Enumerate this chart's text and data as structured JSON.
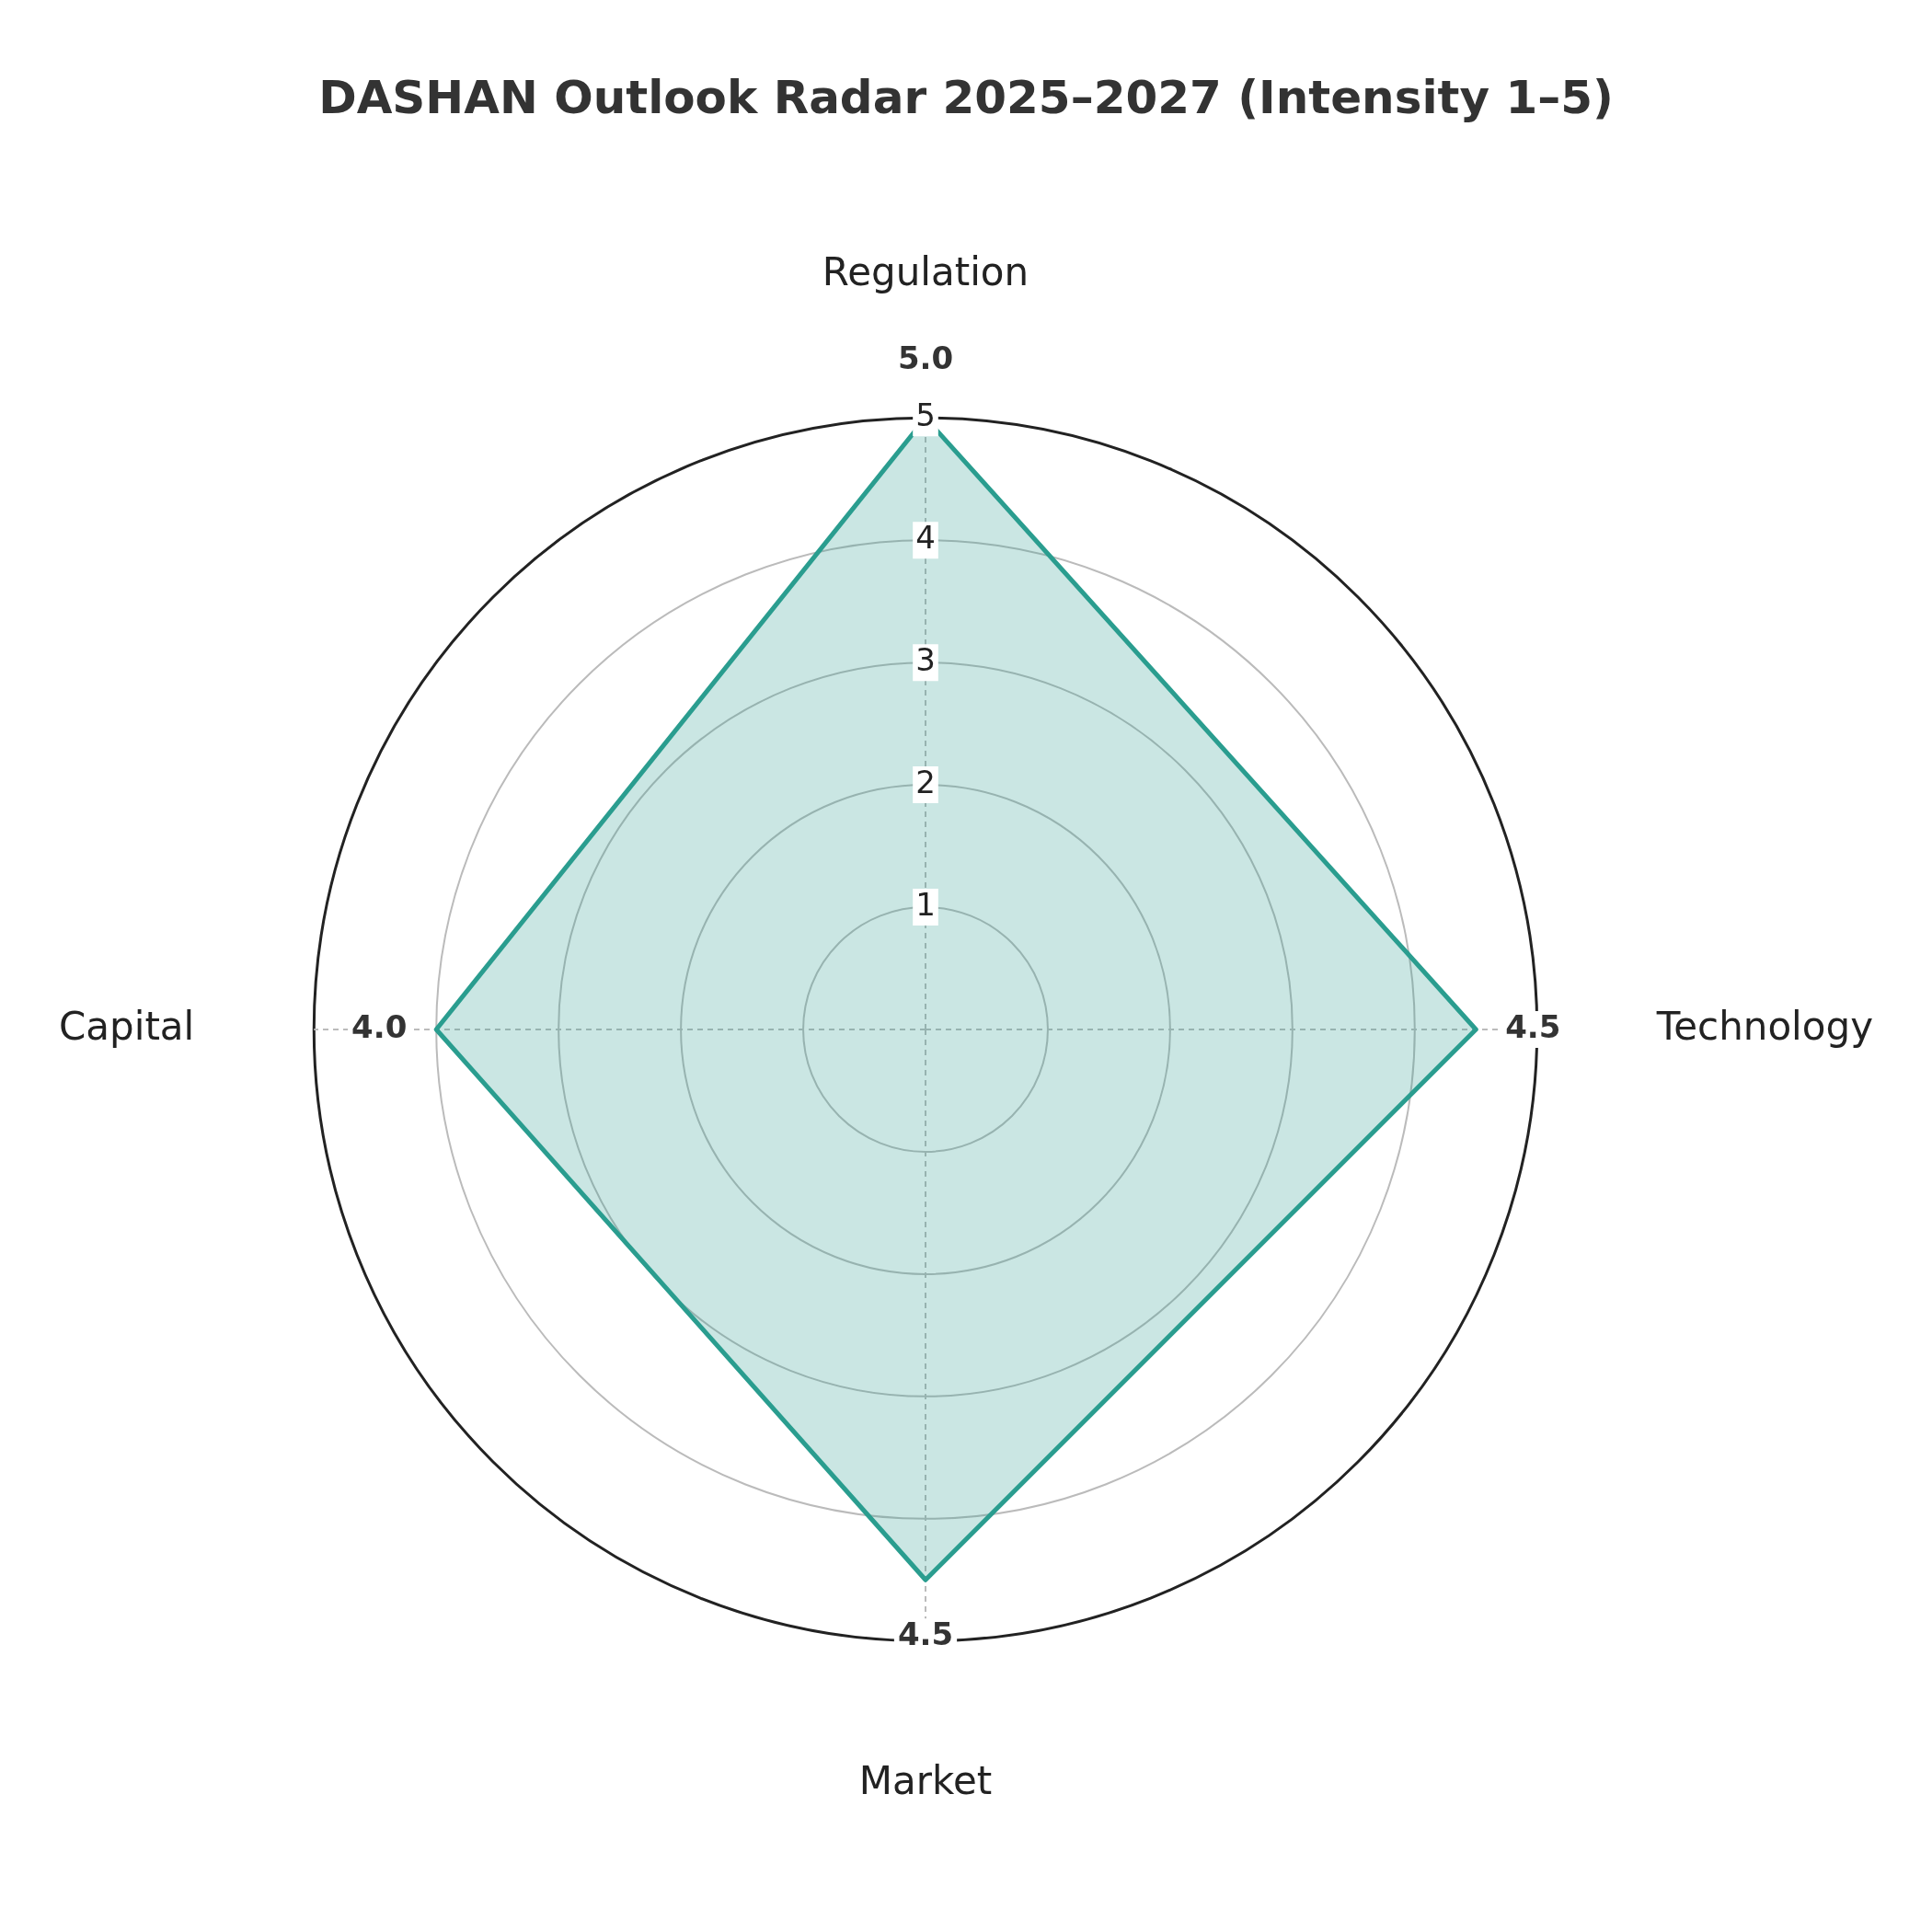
{
  "chart_data": {
    "type": "radar",
    "title": "DASHAN Outlook Radar 2025–2027 (Intensity 1–5)",
    "categories": [
      "Regulation",
      "Technology",
      "Market",
      "Capital"
    ],
    "series": [
      {
        "color": "#2a9d8f",
        "values": [
          5.0,
          4.5,
          4.5,
          4.0
        ],
        "value_labels": [
          "5.0",
          "4.5",
          "4.5",
          "4.0"
        ]
      }
    ],
    "ylim": [
      0,
      5
    ],
    "yticks": [
      1,
      2,
      3,
      4,
      5
    ],
    "grid": true,
    "line_style": "solid",
    "marker": "none",
    "legend": false
  }
}
